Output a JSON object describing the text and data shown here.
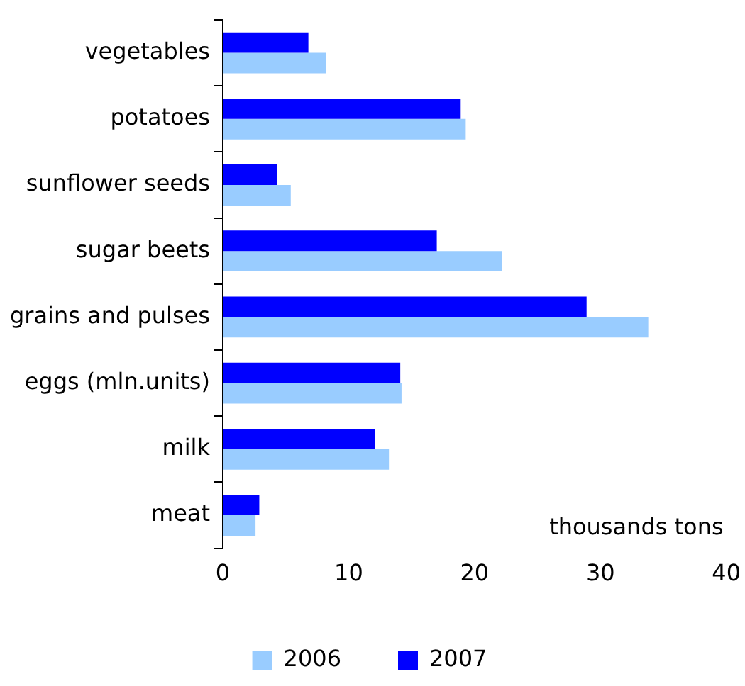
{
  "chart_data": {
    "type": "bar",
    "orientation": "horizontal",
    "categories": [
      "vegetables",
      "potatoes",
      "sunflower seeds",
      "sugar beets",
      "grains and pulses",
      "eggs (mln.units)",
      "milk",
      "meat"
    ],
    "series": [
      {
        "name": "2006",
        "color": "#99ccff",
        "values": [
          8.2,
          19.3,
          5.4,
          22.2,
          33.8,
          14.2,
          13.2,
          2.6
        ]
      },
      {
        "name": "2007",
        "color": "#0000ff",
        "values": [
          6.8,
          18.9,
          4.3,
          17.0,
          28.9,
          14.1,
          12.1,
          2.9
        ]
      }
    ],
    "xlim": [
      0,
      40
    ],
    "xticks": [
      0,
      10,
      20,
      30,
      40
    ],
    "annotations": [
      "thousands tons"
    ],
    "grid": false,
    "legend": "bottom"
  }
}
